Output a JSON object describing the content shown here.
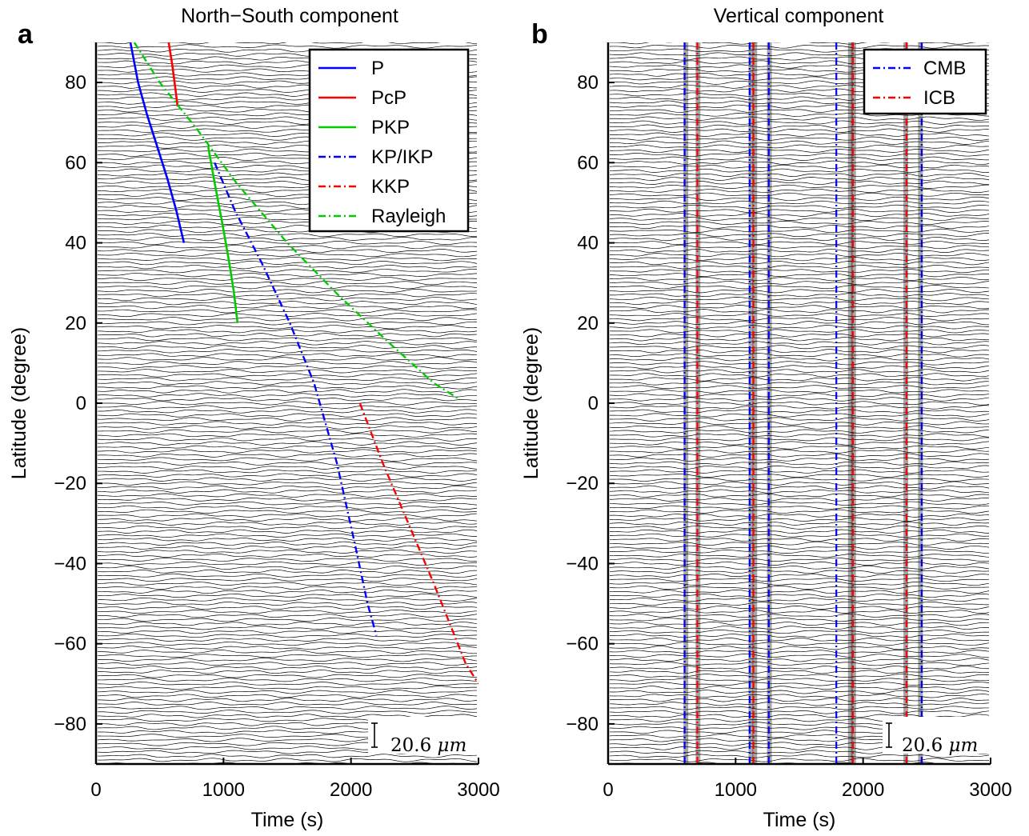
{
  "chart_data": [
    {
      "type": "line",
      "panel_letter": "a",
      "title": "North−South component",
      "xlabel": "Time (s)",
      "ylabel": "Latitude (degree)",
      "xlim": [
        0,
        3000
      ],
      "ylim": [
        -90,
        90
      ],
      "xticks": [
        0,
        1000,
        2000,
        3000
      ],
      "xtick_labels": [
        "0",
        "1000",
        "2000",
        "3000"
      ],
      "yticks": [
        80,
        60,
        40,
        20,
        0,
        -20,
        -40,
        -60,
        -80
      ],
      "ytick_labels": [
        "80",
        "60",
        "40",
        "20",
        "0",
        "−20",
        "−40",
        "−60",
        "−80"
      ],
      "traces": {
        "count": 181,
        "lat_min": -90,
        "lat_max": 90,
        "color": "#000000"
      },
      "scale_bar": {
        "label": "20.6",
        "unit": "μm"
      },
      "legend_position": "top-right",
      "legend": [
        {
          "name": "P",
          "color": "#0000ff",
          "style": "solid"
        },
        {
          "name": "PcP",
          "color": "#ff0000",
          "style": "solid"
        },
        {
          "name": "PKP",
          "color": "#00cc00",
          "style": "solid"
        },
        {
          "name": "KP/IKP",
          "color": "#0000ff",
          "style": "dashdot"
        },
        {
          "name": "KKP",
          "color": "#ff0000",
          "style": "dashdot"
        },
        {
          "name": "Rayleigh",
          "color": "#00cc00",
          "style": "dashdot"
        }
      ],
      "series": [
        {
          "name": "P",
          "color": "#0000ff",
          "style": "solid",
          "points": [
            [
              270,
              90
            ],
            [
              330,
              80
            ],
            [
              400,
              72
            ],
            [
              480,
              64
            ],
            [
              560,
              56
            ],
            [
              630,
              48
            ],
            [
              690,
              40
            ]
          ]
        },
        {
          "name": "PcP",
          "color": "#ff0000",
          "style": "solid",
          "points": [
            [
              570,
              90
            ],
            [
              600,
              84
            ],
            [
              640,
              74
            ]
          ]
        },
        {
          "name": "PKP",
          "color": "#00cc00",
          "style": "solid",
          "points": [
            [
              880,
              64
            ],
            [
              930,
              55
            ],
            [
              990,
              45
            ],
            [
              1040,
              36
            ],
            [
              1080,
              28
            ],
            [
              1110,
              20
            ]
          ]
        },
        {
          "name": "KP/IKP",
          "color": "#0000ff",
          "style": "dashdot",
          "points": [
            [
              930,
              60
            ],
            [
              1090,
              48
            ],
            [
              1300,
              35
            ],
            [
              1520,
              20
            ],
            [
              1710,
              5
            ],
            [
              1890,
              -15
            ],
            [
              2030,
              -35
            ],
            [
              2130,
              -50
            ],
            [
              2200,
              -58
            ]
          ]
        },
        {
          "name": "KKP",
          "color": "#ff0000",
          "style": "dashdot",
          "points": [
            [
              2070,
              0
            ],
            [
              2250,
              -15
            ],
            [
              2450,
              -30
            ],
            [
              2650,
              -45
            ],
            [
              2800,
              -57
            ],
            [
              2900,
              -65
            ],
            [
              3000,
              -70
            ]
          ]
        },
        {
          "name": "Rayleigh",
          "color": "#00cc00",
          "style": "dashdot",
          "points": [
            [
              300,
              90
            ],
            [
              500,
              80
            ],
            [
              800,
              68
            ],
            [
              1100,
              55
            ],
            [
              1500,
              40
            ],
            [
              1900,
              27
            ],
            [
              2300,
              15
            ],
            [
              2650,
              5
            ],
            [
              2850,
              1
            ]
          ]
        }
      ]
    },
    {
      "type": "line",
      "panel_letter": "b",
      "title": "Vertical component",
      "xlabel": "Time (s)",
      "ylabel": "Latitude (degree)",
      "xlim": [
        0,
        3000
      ],
      "ylim": [
        -90,
        90
      ],
      "xticks": [
        0,
        1000,
        2000,
        3000
      ],
      "xtick_labels": [
        "0",
        "1000",
        "2000",
        "3000"
      ],
      "yticks": [
        80,
        60,
        40,
        20,
        0,
        -20,
        -40,
        -60,
        -80
      ],
      "ytick_labels": [
        "80",
        "60",
        "40",
        "20",
        "0",
        "−20",
        "−40",
        "−60",
        "−80"
      ],
      "traces": {
        "count": 181,
        "lat_min": -90,
        "lat_max": 90,
        "color": "#000000"
      },
      "scale_bar": {
        "label": "20.6",
        "unit": "μm"
      },
      "legend_position": "top-right",
      "legend": [
        {
          "name": "CMB",
          "color": "#0000ff",
          "style": "dashdot"
        },
        {
          "name": "ICB",
          "color": "#ff0000",
          "style": "dashdot"
        }
      ],
      "series": [
        {
          "name": "CMB",
          "color": "#0000ff",
          "style": "dashdot",
          "vertical_x": [
            600,
            1110,
            1260,
            1790,
            2460
          ]
        },
        {
          "name": "ICB",
          "color": "#ff0000",
          "style": "dashdot",
          "vertical_x": [
            700,
            1140,
            1920,
            2340
          ]
        }
      ]
    }
  ]
}
